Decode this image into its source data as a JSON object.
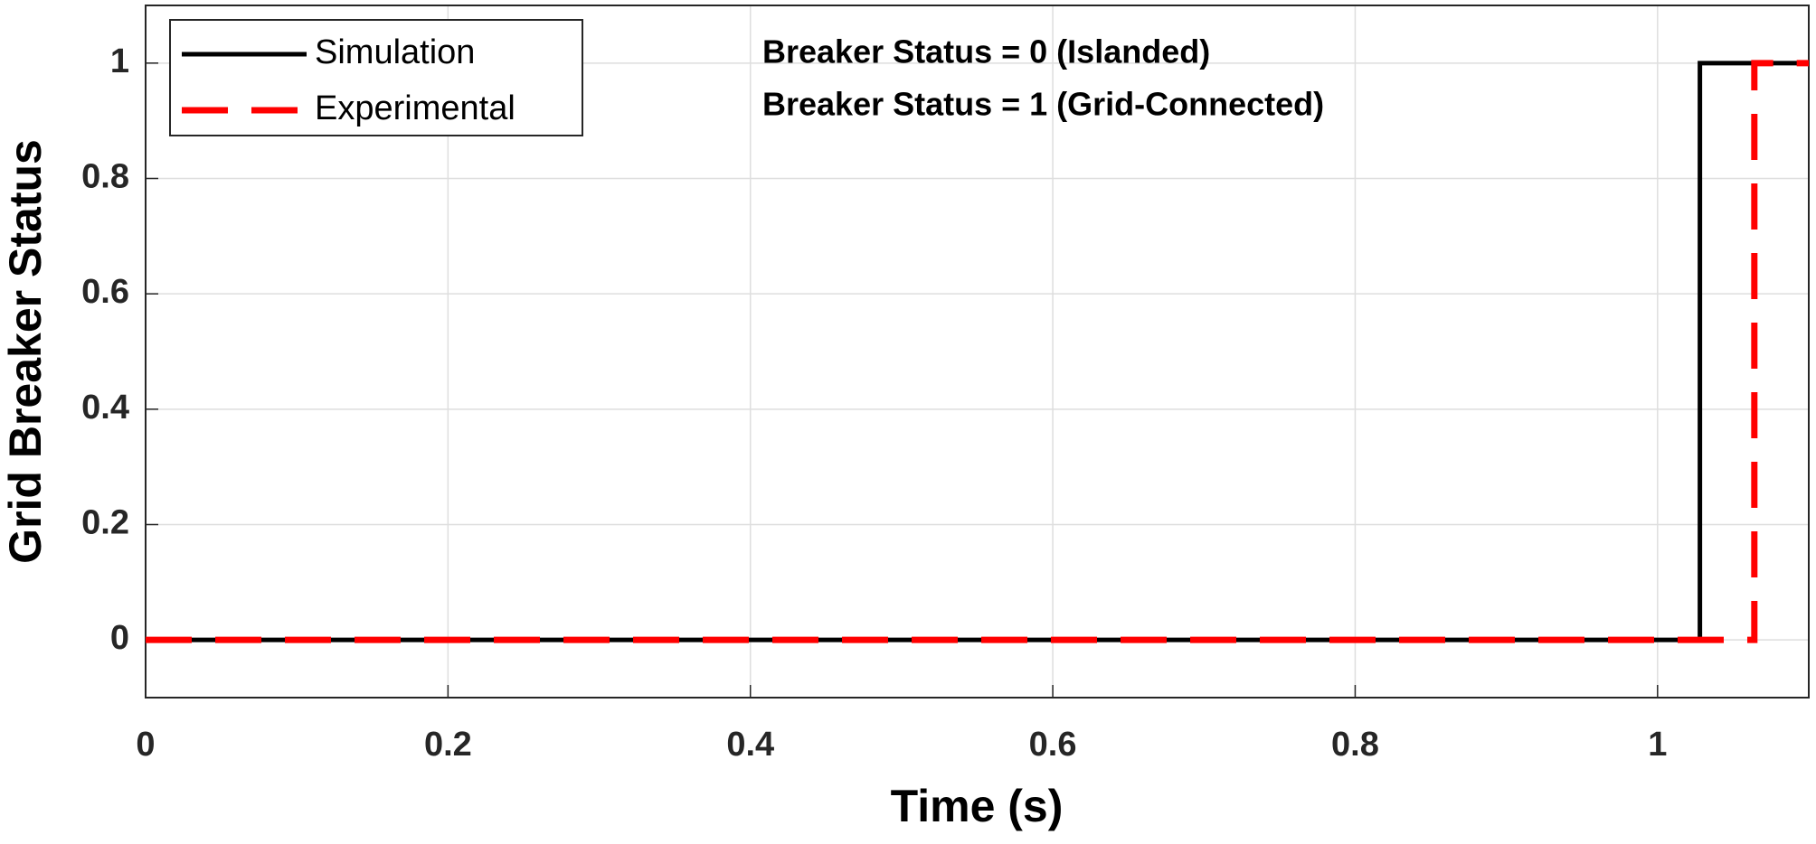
{
  "chart_data": {
    "type": "line",
    "xlabel": "Time (s)",
    "ylabel": "Grid Breaker Status",
    "annotations": [
      "Breaker Status = 0 (Islanded)",
      "Breaker Status = 1 (Grid-Connected)"
    ],
    "series": [
      {
        "name": "Simulation",
        "color": "#000000",
        "x": [
          0,
          1.028,
          1.028,
          1.1
        ],
        "values": [
          0,
          0,
          1,
          1
        ]
      },
      {
        "name": "Experimental",
        "color": "#ff0000",
        "dashed": true,
        "x": [
          0,
          1.064,
          1.064,
          1.1
        ],
        "values": [
          0,
          0,
          1,
          1
        ]
      }
    ],
    "xlim": [
      0,
      1.1
    ],
    "xticks": [
      0,
      0.2,
      0.4,
      0.6,
      0.8,
      1
    ],
    "ylim": [
      -0.1,
      1.1
    ],
    "yticks": [
      0,
      0.2,
      0.4,
      0.6,
      0.8,
      1
    ],
    "grid": true,
    "legend": "upper left"
  }
}
